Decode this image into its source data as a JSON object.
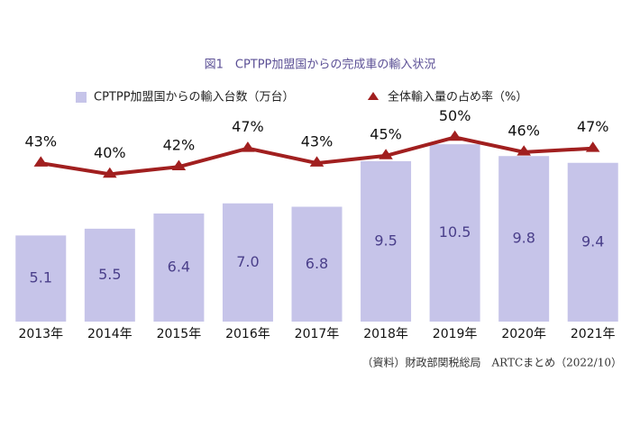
{
  "chart_data": {
    "type": "bar_line",
    "title": "図1　CPTPP加盟国からの完成車の輸入状況",
    "source": "（資料）財政部関税総局　ARTCまとめ（2022/10）",
    "categories": [
      "2013年",
      "2014年",
      "2015年",
      "2016年",
      "2017年",
      "2018年",
      "2019年",
      "2020年",
      "2021年"
    ],
    "series": [
      {
        "name": "CPTPP加盟国からの輸入台数（万台）",
        "type": "bar",
        "color": "#c6c4e9",
        "values": [
          5.1,
          5.5,
          6.4,
          7.0,
          6.8,
          9.5,
          10.5,
          9.8,
          9.4
        ],
        "value_labels": [
          "5.1",
          "5.5",
          "6.4",
          "7.0",
          "6.8",
          "9.5",
          "10.5",
          "9.8",
          "9.4"
        ]
      },
      {
        "name": "全体輸入量の占め率（%）",
        "type": "line",
        "axis": "y2",
        "color": "#a11f1f",
        "values": [
          43,
          40,
          42,
          47,
          43,
          45,
          50,
          46,
          47
        ],
        "value_labels": [
          "43%",
          "40%",
          "42%",
          "47%",
          "43%",
          "45%",
          "50%",
          "46%",
          "47%"
        ]
      }
    ],
    "ylim": [
      0,
      12
    ],
    "y2lim": [
      0,
      55
    ]
  }
}
